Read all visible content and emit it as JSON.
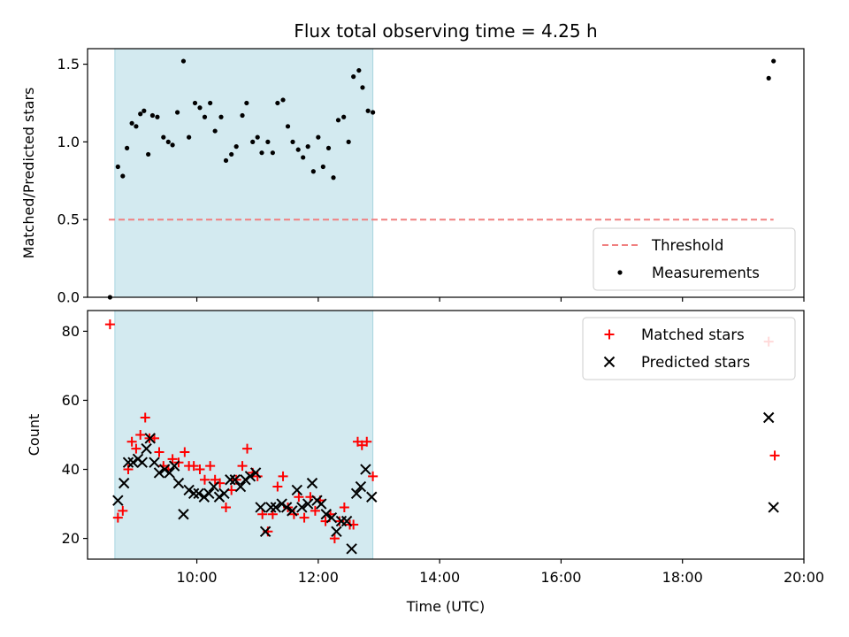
{
  "chart_data": {
    "title": "Flux total observing time = 4.25 h",
    "xlabel": "Time (UTC)",
    "xlim": [
      8.2,
      20.0
    ],
    "xticks": [
      {
        "value": 10,
        "label": "10:00"
      },
      {
        "value": 12,
        "label": "12:00"
      },
      {
        "value": 14,
        "label": "14:00"
      },
      {
        "value": 16,
        "label": "16:00"
      },
      {
        "value": 18,
        "label": "18:00"
      },
      {
        "value": 20,
        "label": "20:00"
      }
    ],
    "observing_window": {
      "start": 8.65,
      "end": 12.9,
      "color": "#d3eaf0"
    },
    "panels": [
      {
        "type": "scatter",
        "ylabel": "Matched/Predicted stars",
        "ylim": [
          0.0,
          1.6
        ],
        "yticks": [
          {
            "value": 0.0,
            "label": "0.0"
          },
          {
            "value": 0.5,
            "label": "0.5"
          },
          {
            "value": 1.0,
            "label": "1.0"
          },
          {
            "value": 1.5,
            "label": "1.5"
          }
        ],
        "threshold": {
          "name": "Threshold",
          "value": 0.5,
          "x_from": 8.55,
          "x_to": 19.5,
          "color": "#f08080"
        },
        "series": [
          {
            "name": "Measurements",
            "marker": "dot",
            "color": "#000000",
            "points": [
              [
                8.57,
                0.0
              ],
              [
                8.7,
                0.84
              ],
              [
                8.78,
                0.78
              ],
              [
                8.85,
                0.96
              ],
              [
                8.93,
                1.12
              ],
              [
                9.0,
                1.1
              ],
              [
                9.07,
                1.18
              ],
              [
                9.13,
                1.2
              ],
              [
                9.2,
                0.92
              ],
              [
                9.27,
                1.17
              ],
              [
                9.35,
                1.16
              ],
              [
                9.45,
                1.03
              ],
              [
                9.53,
                1.0
              ],
              [
                9.6,
                0.98
              ],
              [
                9.68,
                1.19
              ],
              [
                9.78,
                1.52
              ],
              [
                9.87,
                1.03
              ],
              [
                9.97,
                1.25
              ],
              [
                10.05,
                1.22
              ],
              [
                10.13,
                1.16
              ],
              [
                10.22,
                1.25
              ],
              [
                10.3,
                1.07
              ],
              [
                10.4,
                1.16
              ],
              [
                10.48,
                0.88
              ],
              [
                10.57,
                0.92
              ],
              [
                10.65,
                0.97
              ],
              [
                10.75,
                1.17
              ],
              [
                10.82,
                1.25
              ],
              [
                10.92,
                1.0
              ],
              [
                11.0,
                1.03
              ],
              [
                11.07,
                0.93
              ],
              [
                11.17,
                1.0
              ],
              [
                11.25,
                0.93
              ],
              [
                11.33,
                1.25
              ],
              [
                11.42,
                1.27
              ],
              [
                11.5,
                1.1
              ],
              [
                11.58,
                1.0
              ],
              [
                11.67,
                0.95
              ],
              [
                11.75,
                0.9
              ],
              [
                11.83,
                0.97
              ],
              [
                11.92,
                0.81
              ],
              [
                12.0,
                1.03
              ],
              [
                12.08,
                0.84
              ],
              [
                12.17,
                0.96
              ],
              [
                12.25,
                0.77
              ],
              [
                12.33,
                1.14
              ],
              [
                12.42,
                1.16
              ],
              [
                12.5,
                1.0
              ],
              [
                12.58,
                1.42
              ],
              [
                12.67,
                1.46
              ],
              [
                12.73,
                1.35
              ],
              [
                12.82,
                1.2
              ],
              [
                12.9,
                1.19
              ],
              [
                19.42,
                1.41
              ],
              [
                19.5,
                1.52
              ]
            ]
          }
        ],
        "legend": {
          "position": "lower right",
          "entries": [
            "Threshold",
            "Measurements"
          ]
        }
      },
      {
        "type": "scatter",
        "ylabel": "Count",
        "ylim": [
          14,
          86
        ],
        "yticks": [
          {
            "value": 20,
            "label": "20"
          },
          {
            "value": 40,
            "label": "40"
          },
          {
            "value": 60,
            "label": "60"
          },
          {
            "value": 80,
            "label": "80"
          }
        ],
        "series": [
          {
            "name": "Matched stars",
            "marker": "plus",
            "color": "#ff0000",
            "points": [
              [
                8.57,
                82
              ],
              [
                8.7,
                26
              ],
              [
                8.78,
                28
              ],
              [
                8.87,
                40
              ],
              [
                8.93,
                48
              ],
              [
                9.0,
                46
              ],
              [
                9.07,
                50
              ],
              [
                9.15,
                55
              ],
              [
                9.22,
                49
              ],
              [
                9.3,
                49
              ],
              [
                9.38,
                45
              ],
              [
                9.45,
                41
              ],
              [
                9.53,
                40
              ],
              [
                9.6,
                43
              ],
              [
                9.7,
                42
              ],
              [
                9.8,
                45
              ],
              [
                9.87,
                41
              ],
              [
                9.95,
                41
              ],
              [
                10.05,
                40
              ],
              [
                10.13,
                37
              ],
              [
                10.22,
                41
              ],
              [
                10.3,
                37
              ],
              [
                10.38,
                36
              ],
              [
                10.48,
                29
              ],
              [
                10.57,
                34
              ],
              [
                10.65,
                37
              ],
              [
                10.75,
                41
              ],
              [
                10.83,
                46
              ],
              [
                10.92,
                39
              ],
              [
                11.0,
                38
              ],
              [
                11.08,
                27
              ],
              [
                11.17,
                22
              ],
              [
                11.25,
                27
              ],
              [
                11.33,
                35
              ],
              [
                11.42,
                38
              ],
              [
                11.5,
                29
              ],
              [
                11.6,
                27
              ],
              [
                11.68,
                32
              ],
              [
                11.77,
                26
              ],
              [
                11.87,
                32
              ],
              [
                11.95,
                28
              ],
              [
                12.03,
                31
              ],
              [
                12.12,
                25
              ],
              [
                12.2,
                27
              ],
              [
                12.27,
                20
              ],
              [
                12.35,
                25
              ],
              [
                12.43,
                29
              ],
              [
                12.52,
                24
              ],
              [
                12.58,
                24
              ],
              [
                12.65,
                48
              ],
              [
                12.72,
                47
              ],
              [
                12.8,
                48
              ],
              [
                12.9,
                38
              ],
              [
                19.42,
                77
              ],
              [
                19.52,
                44
              ]
            ]
          },
          {
            "name": "Predicted stars",
            "marker": "x",
            "color": "#000000",
            "points": [
              [
                8.7,
                31
              ],
              [
                8.8,
                36
              ],
              [
                8.87,
                42
              ],
              [
                8.95,
                42
              ],
              [
                9.03,
                43
              ],
              [
                9.1,
                42
              ],
              [
                9.17,
                46
              ],
              [
                9.23,
                49
              ],
              [
                9.3,
                42
              ],
              [
                9.38,
                39
              ],
              [
                9.47,
                40
              ],
              [
                9.55,
                39
              ],
              [
                9.63,
                41
              ],
              [
                9.7,
                36
              ],
              [
                9.78,
                27
              ],
              [
                9.87,
                34
              ],
              [
                9.95,
                33
              ],
              [
                10.03,
                33
              ],
              [
                10.12,
                32
              ],
              [
                10.2,
                33
              ],
              [
                10.28,
                35
              ],
              [
                10.37,
                32
              ],
              [
                10.45,
                33
              ],
              [
                10.55,
                37
              ],
              [
                10.63,
                37
              ],
              [
                10.72,
                35
              ],
              [
                10.8,
                37
              ],
              [
                10.88,
                38
              ],
              [
                10.97,
                39
              ],
              [
                11.05,
                29
              ],
              [
                11.13,
                22
              ],
              [
                11.22,
                29
              ],
              [
                11.3,
                29
              ],
              [
                11.4,
                30
              ],
              [
                11.48,
                29
              ],
              [
                11.57,
                28
              ],
              [
                11.65,
                34
              ],
              [
                11.73,
                29
              ],
              [
                11.83,
                30
              ],
              [
                11.9,
                36
              ],
              [
                11.98,
                31
              ],
              [
                12.05,
                30
              ],
              [
                12.13,
                27
              ],
              [
                12.22,
                26
              ],
              [
                12.3,
                22
              ],
              [
                12.38,
                25
              ],
              [
                12.47,
                25
              ],
              [
                12.55,
                17
              ],
              [
                12.63,
                33
              ],
              [
                12.7,
                35
              ],
              [
                12.78,
                40
              ],
              [
                12.88,
                32
              ],
              [
                19.42,
                55
              ],
              [
                19.5,
                29
              ]
            ]
          }
        ],
        "legend": {
          "position": "upper right",
          "entries": [
            "Matched stars",
            "Predicted stars"
          ]
        }
      }
    ]
  }
}
